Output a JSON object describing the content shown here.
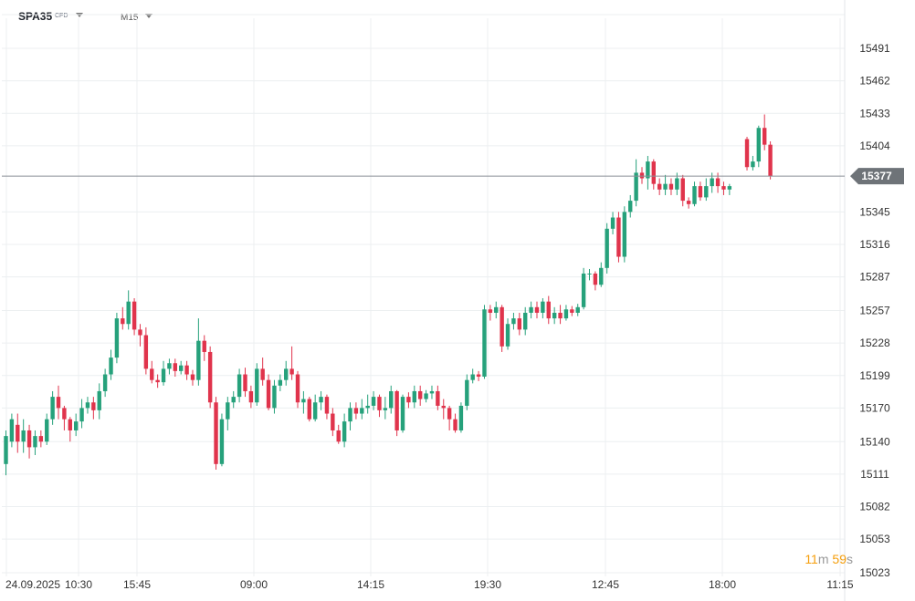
{
  "toolbar": {
    "symbol": "SPA35",
    "symbol_type": "CFD",
    "timeframe": "M15"
  },
  "countdown": {
    "minutes": "11",
    "minutes_unit": "m",
    "seconds": "59",
    "seconds_unit": "s"
  },
  "colors": {
    "up": "#26a17b",
    "down": "#e0344c",
    "grid": "#eceff1",
    "price_line": "#8a8f96",
    "price_badge": "#6e7378",
    "countdown": "#f59e0b"
  },
  "chart_data": {
    "type": "candlestick",
    "instrument": "SPA35",
    "timeframe": "M15",
    "current_price": "15377",
    "y_ticks": [
      "15491",
      "15462",
      "15433",
      "15404",
      "15345",
      "15316",
      "15287",
      "15257",
      "15228",
      "15199",
      "15170",
      "15140",
      "15111",
      "15082",
      "15053",
      "15023"
    ],
    "x_ticks": [
      "24.09.2025",
      "10:30",
      "15:45",
      "09:00",
      "14:15",
      "19:30",
      "12:45",
      "18:00",
      "11:15"
    ],
    "ylim": [
      15010,
      15520
    ],
    "candles": [
      [
        15120,
        15145,
        15110,
        15150
      ],
      [
        15140,
        15160,
        15135,
        15165
      ],
      [
        15155,
        15140,
        15130,
        15165
      ],
      [
        15140,
        15150,
        15130,
        15160
      ],
      [
        15150,
        15135,
        15125,
        15155
      ],
      [
        15135,
        15145,
        15128,
        15150
      ],
      [
        15145,
        15140,
        15135,
        15150
      ],
      [
        15140,
        15160,
        15137,
        15165
      ],
      [
        15160,
        15180,
        15155,
        15185
      ],
      [
        15180,
        15170,
        15160,
        15190
      ],
      [
        15170,
        15160,
        15150,
        15172
      ],
      [
        15160,
        15150,
        15140,
        15162
      ],
      [
        15150,
        15158,
        15145,
        15165
      ],
      [
        15158,
        15170,
        15152,
        15178
      ],
      [
        15170,
        15175,
        15165,
        15180
      ],
      [
        15175,
        15168,
        15160,
        15180
      ],
      [
        15168,
        15185,
        15160,
        15192
      ],
      [
        15185,
        15200,
        15180,
        15205
      ],
      [
        15200,
        15215,
        15195,
        15222
      ],
      [
        15215,
        15250,
        15210,
        15255
      ],
      [
        15250,
        15245,
        15240,
        15260
      ],
      [
        15245,
        15265,
        15240,
        15275
      ],
      [
        15265,
        15240,
        15235,
        15268
      ],
      [
        15240,
        15235,
        15225,
        15245
      ],
      [
        15235,
        15205,
        15200,
        15242
      ],
      [
        15205,
        15195,
        15192,
        15212
      ],
      [
        15195,
        15193,
        15188,
        15200
      ],
      [
        15193,
        15205,
        15190,
        15212
      ],
      [
        15205,
        15210,
        15200,
        15214
      ],
      [
        15210,
        15203,
        15198,
        15214
      ],
      [
        15203,
        15208,
        15200,
        15212
      ],
      [
        15208,
        15200,
        15195,
        15212
      ],
      [
        15200,
        15195,
        15190,
        15204
      ],
      [
        15195,
        15230,
        15190,
        15250
      ],
      [
        15230,
        15220,
        15212,
        15235
      ],
      [
        15220,
        15175,
        15170,
        15225
      ],
      [
        15175,
        15120,
        15115,
        15180
      ],
      [
        15120,
        15160,
        15118,
        15165
      ],
      [
        15160,
        15175,
        15150,
        15180
      ],
      [
        15175,
        15180,
        15170,
        15185
      ],
      [
        15180,
        15200,
        15175,
        15205
      ],
      [
        15200,
        15185,
        15180,
        15206
      ],
      [
        15185,
        15175,
        15170,
        15190
      ],
      [
        15175,
        15205,
        15172,
        15210
      ],
      [
        15205,
        15195,
        15190,
        15215
      ],
      [
        15195,
        15170,
        15168,
        15200
      ],
      [
        15170,
        15190,
        15165,
        15195
      ],
      [
        15190,
        15195,
        15185,
        15200
      ],
      [
        15195,
        15205,
        15190,
        15212
      ],
      [
        15205,
        15200,
        15195,
        15225
      ],
      [
        15200,
        15175,
        15170,
        15203
      ],
      [
        15175,
        15178,
        15165,
        15185
      ],
      [
        15178,
        15160,
        15158,
        15180
      ],
      [
        15160,
        15175,
        15158,
        15182
      ],
      [
        15175,
        15180,
        15168,
        15185
      ],
      [
        15180,
        15165,
        15160,
        15182
      ],
      [
        15165,
        15150,
        15145,
        15170
      ],
      [
        15150,
        15140,
        15138,
        15155
      ],
      [
        15140,
        15158,
        15135,
        15165
      ],
      [
        15158,
        15170,
        15150,
        15175
      ],
      [
        15170,
        15165,
        15160,
        15175
      ],
      [
        15165,
        15170,
        15160,
        15178
      ],
      [
        15170,
        15172,
        15165,
        15182
      ],
      [
        15172,
        15180,
        15168,
        15185
      ],
      [
        15180,
        15168,
        15162,
        15182
      ],
      [
        15168,
        15170,
        15160,
        15180
      ],
      [
        15170,
        15185,
        15165,
        15190
      ],
      [
        15185,
        15150,
        15145,
        15186
      ],
      [
        15150,
        15180,
        15148,
        15182
      ],
      [
        15180,
        15175,
        15170,
        15184
      ],
      [
        15175,
        15185,
        15170,
        15190
      ],
      [
        15185,
        15178,
        15172,
        15190
      ],
      [
        15178,
        15183,
        15175,
        15186
      ],
      [
        15183,
        15185,
        15178,
        15190
      ],
      [
        15185,
        15172,
        15168,
        15190
      ],
      [
        15172,
        15170,
        15160,
        15178
      ],
      [
        15170,
        15160,
        15150,
        15172
      ],
      [
        15160,
        15150,
        15148,
        15165
      ],
      [
        15150,
        15172,
        15148,
        15175
      ],
      [
        15172,
        15195,
        15168,
        15200
      ],
      [
        15195,
        15200,
        15192,
        15205
      ],
      [
        15200,
        15198,
        15194,
        15203
      ],
      [
        15198,
        15258,
        15196,
        15262
      ],
      [
        15258,
        15255,
        15248,
        15262
      ],
      [
        15255,
        15260,
        15250,
        15265
      ],
      [
        15260,
        15225,
        15220,
        15262
      ],
      [
        15225,
        15245,
        15222,
        15250
      ],
      [
        15245,
        15250,
        15240,
        15255
      ],
      [
        15250,
        15240,
        15235,
        15255
      ],
      [
        15240,
        15255,
        15235,
        15260
      ],
      [
        15255,
        15260,
        15250,
        15265
      ],
      [
        15260,
        15255,
        15250,
        15265
      ],
      [
        15255,
        15265,
        15250,
        15268
      ],
      [
        15265,
        15250,
        15245,
        15270
      ],
      [
        15250,
        15255,
        15245,
        15260
      ],
      [
        15255,
        15250,
        15245,
        15262
      ],
      [
        15250,
        15258,
        15248,
        15262
      ],
      [
        15258,
        15255,
        15252,
        15261
      ],
      [
        15255,
        15260,
        15252,
        15263
      ],
      [
        15260,
        15290,
        15258,
        15295
      ],
      [
        15290,
        15290,
        15284,
        15294
      ],
      [
        15290,
        15280,
        15275,
        15292
      ],
      [
        15280,
        15295,
        15278,
        15300
      ],
      [
        15295,
        15330,
        15290,
        15335
      ],
      [
        15330,
        15340,
        15325,
        15345
      ],
      [
        15340,
        15305,
        15300,
        15345
      ],
      [
        15305,
        15345,
        15300,
        15350
      ],
      [
        15345,
        15355,
        15340,
        15360
      ],
      [
        15355,
        15380,
        15350,
        15392
      ],
      [
        15380,
        15375,
        15370,
        15385
      ],
      [
        15375,
        15390,
        15365,
        15395
      ],
      [
        15390,
        15370,
        15365,
        15392
      ],
      [
        15370,
        15365,
        15360,
        15375
      ],
      [
        15365,
        15370,
        15360,
        15378
      ],
      [
        15370,
        15365,
        15360,
        15375
      ],
      [
        15365,
        15375,
        15360,
        15380
      ],
      [
        15375,
        15355,
        15350,
        15378
      ],
      [
        15355,
        15352,
        15348,
        15358
      ],
      [
        15352,
        15368,
        15350,
        15372
      ],
      [
        15368,
        15358,
        15355,
        15372
      ],
      [
        15358,
        15368,
        15355,
        15375
      ],
      [
        15368,
        15375,
        15362,
        15380
      ],
      [
        15375,
        15368,
        15362,
        15380
      ],
      [
        15368,
        15365,
        15360,
        15372
      ],
      [
        15365,
        15368,
        15360,
        15370
      ],
      null,
      null,
      [
        15410,
        15385,
        15382,
        15412
      ],
      [
        15385,
        15390,
        15382,
        15395
      ],
      [
        15390,
        15420,
        15385,
        15422
      ],
      [
        15420,
        15405,
        15400,
        15432
      ],
      [
        15405,
        15377,
        15374,
        15408
      ]
    ]
  }
}
